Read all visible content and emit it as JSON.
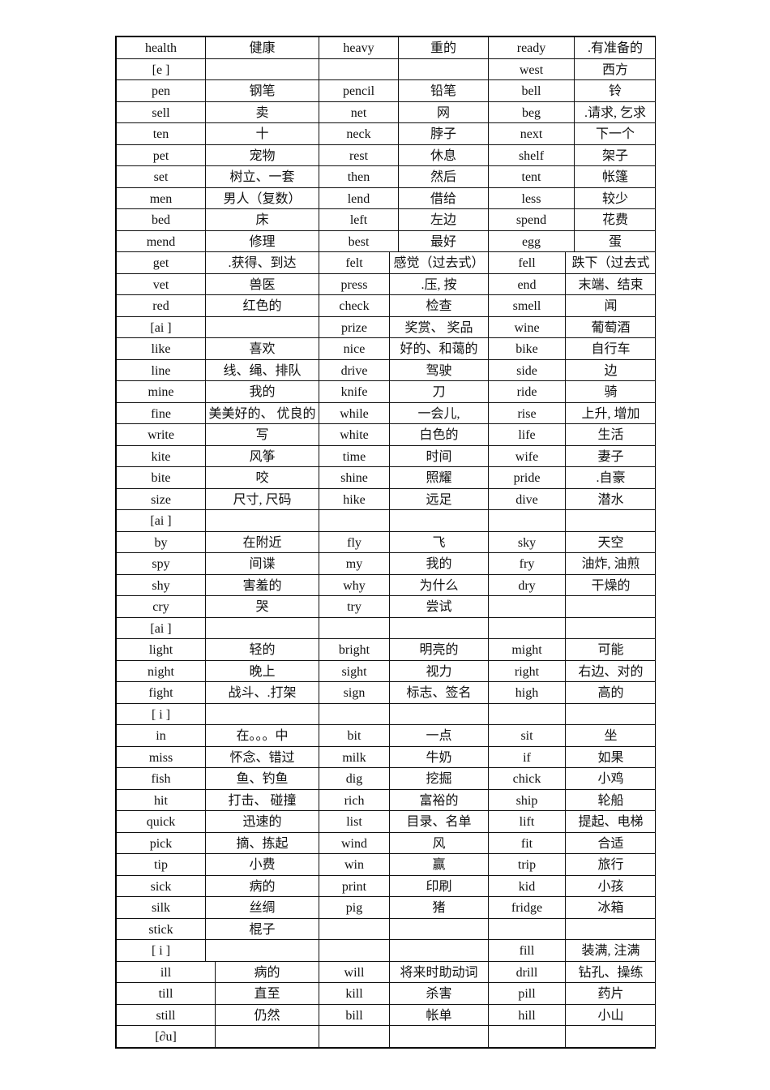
{
  "table": {
    "rows": [
      [
        "health",
        "健康",
        "heavy",
        "重的",
        "ready",
        ".有准备的"
      ],
      [
        "[e ]",
        "",
        "",
        "",
        "west",
        "西方"
      ],
      [
        "pen",
        "钢笔",
        "pencil",
        "铅笔",
        "bell",
        "铃"
      ],
      [
        "sell",
        "卖",
        "net",
        "网",
        "beg",
        ".请求, 乞求"
      ],
      [
        "ten",
        "十",
        "neck",
        "脖子",
        "next",
        "下一个"
      ],
      [
        "pet",
        "宠物",
        "rest",
        "休息",
        "shelf",
        "架子"
      ],
      [
        "set",
        "树立、一套",
        "then",
        "然后",
        "tent",
        "帐篷"
      ],
      [
        "men",
        "男人（复数）",
        "lend",
        "借给",
        "less",
        "较少"
      ],
      [
        "bed",
        "床",
        "left",
        "左边",
        "spend",
        "花费"
      ],
      [
        "mend",
        "修理",
        "best",
        "最好",
        "egg",
        "蛋"
      ],
      [
        "get",
        ".获得、到达",
        "felt",
        "感觉（过去式）",
        "fell",
        "跌下（过去式"
      ],
      [
        "vet",
        "兽医",
        "press",
        ".压, 按",
        "end",
        "末端、结束"
      ],
      [
        "red",
        "红色的",
        "check",
        "检查",
        "smell",
        "闻"
      ],
      [
        "[ai ]",
        "",
        "prize",
        "奖赏、 奖品",
        "wine",
        "葡萄酒"
      ],
      [
        "like",
        "喜欢",
        "nice",
        "好的、和蔼的",
        "bike",
        "自行车"
      ],
      [
        "line",
        "线、绳、排队",
        "drive",
        "驾驶",
        "side",
        "边"
      ],
      [
        "mine",
        "我的",
        "knife",
        "刀",
        "ride",
        "骑"
      ],
      [
        "fine",
        "美美好的、 优良的",
        "while",
        "一会儿,",
        "rise",
        "上升, 增加"
      ],
      [
        "write",
        "写",
        "white",
        "白色的",
        "life",
        "生活"
      ],
      [
        "kite",
        "风筝",
        "time",
        "时间",
        "wife",
        "妻子"
      ],
      [
        "bite",
        "咬",
        "shine",
        "照耀",
        "pride",
        ".自豪"
      ],
      [
        "size",
        "尺寸, 尺码",
        "hike",
        "远足",
        "dive",
        "潜水"
      ],
      [
        "[ai ]",
        "",
        "",
        "",
        "",
        ""
      ],
      [
        "by",
        "在附近",
        "fly",
        "飞",
        "sky",
        "天空"
      ],
      [
        "spy",
        "间谍",
        "my",
        "我的",
        "fry",
        "油炸, 油煎"
      ],
      [
        "shy",
        "害羞的",
        "why",
        "为什么",
        "dry",
        "干燥的"
      ],
      [
        "cry",
        "哭",
        "try",
        "尝试",
        "",
        ""
      ],
      [
        "[ai ]",
        "",
        "",
        "",
        "",
        ""
      ],
      [
        "light",
        "轻的",
        "bright",
        "明亮的",
        "might",
        "可能"
      ],
      [
        "night",
        "晚上",
        "sight",
        "视力",
        "right",
        "右边、对的"
      ],
      [
        "fight",
        "战斗、.打架",
        "sign",
        "标志、签名",
        "high",
        "高的"
      ],
      [
        "[ i ]",
        "",
        "",
        "",
        "",
        ""
      ],
      [
        "in",
        "在。。。中",
        "bit",
        "一点",
        "sit",
        "坐"
      ],
      [
        "miss",
        "怀念、错过",
        "milk",
        "牛奶",
        "if",
        "如果"
      ],
      [
        "fish",
        "鱼、钓鱼",
        "dig",
        "挖掘",
        "chick",
        "小鸡"
      ],
      [
        "hit",
        "打击、 碰撞",
        "rich",
        "富裕的",
        "ship",
        "轮船"
      ],
      [
        "quick",
        "迅速的",
        "list",
        "目录、名单",
        "lift",
        "提起、电梯"
      ],
      [
        "pick",
        "摘、拣起",
        "wind",
        "风",
        "fit",
        "合适"
      ],
      [
        "tip",
        "小费",
        "win",
        "赢",
        "trip",
        "旅行"
      ],
      [
        "sick",
        "病的",
        "print",
        "印刷",
        "kid",
        "小孩"
      ],
      [
        "silk",
        "丝绸",
        "pig",
        "猪",
        "fridge",
        "冰箱"
      ],
      [
        "stick",
        "棍子",
        "",
        "",
        "",
        ""
      ],
      [
        "[ i ]",
        "",
        "",
        "",
        "fill",
        "装满, 注满"
      ],
      [
        "ill",
        "病的",
        "will",
        "将来时助动词",
        "drill",
        "钻孔、操练"
      ],
      [
        "till",
        "直至",
        "kill",
        "杀害",
        "pill",
        "药片"
      ],
      [
        "still",
        "仍然",
        "bill",
        "帐单",
        "hill",
        "小山"
      ],
      [
        "[∂u]",
        "",
        "",
        "",
        "",
        ""
      ]
    ]
  }
}
